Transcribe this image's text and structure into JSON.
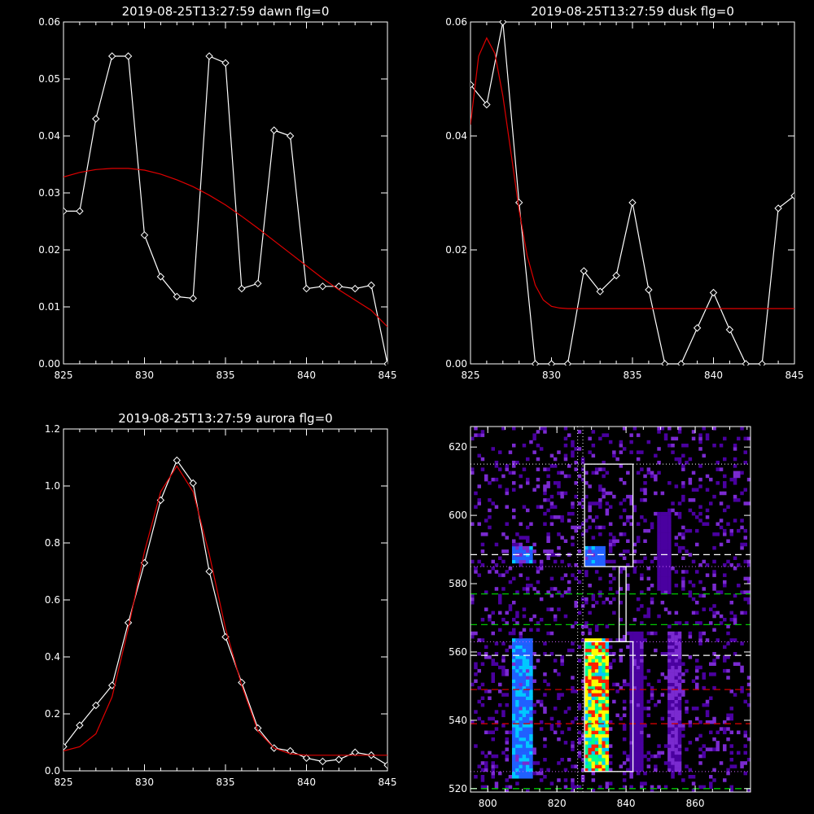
{
  "colors": {
    "background": "#000000",
    "foreground": "#ffffff",
    "fit": "#e00000",
    "green_line": "#00c800",
    "red_line": "#d00000",
    "magenta_dots": "#cc66ff"
  },
  "chart_data": [
    {
      "type": "line",
      "title": "2019-08-25T13:27:59 dawn flg=0",
      "xlim": [
        825,
        845
      ],
      "ylim": [
        0.0,
        0.06
      ],
      "xticks": [
        "825",
        "830",
        "835",
        "840",
        "845"
      ],
      "yticks": [
        "0.00",
        "0.01",
        "0.02",
        "0.03",
        "0.04",
        "0.05",
        "0.06"
      ],
      "series": [
        {
          "role": "data",
          "x": [
            825,
            826,
            827,
            828,
            829,
            830,
            831,
            832,
            833,
            834,
            835,
            836,
            837,
            838,
            839,
            840,
            841,
            842,
            843,
            844,
            845
          ],
          "y": [
            0.0268,
            0.0268,
            0.043,
            0.054,
            0.054,
            0.0226,
            0.0153,
            0.0118,
            0.0115,
            0.054,
            0.0528,
            0.0132,
            0.0141,
            0.041,
            0.04,
            0.0132,
            0.0136,
            0.0136,
            0.0132,
            0.0138,
            0.0
          ]
        },
        {
          "role": "fit",
          "x": [
            825,
            826,
            827,
            828,
            829,
            830,
            831,
            832,
            833,
            834,
            835,
            836,
            837,
            838,
            839,
            840,
            841,
            842,
            843,
            844,
            845
          ],
          "y": [
            0.0328,
            0.0336,
            0.0341,
            0.0343,
            0.0343,
            0.034,
            0.0333,
            0.0323,
            0.0311,
            0.0296,
            0.0279,
            0.0259,
            0.0238,
            0.0216,
            0.0194,
            0.0172,
            0.015,
            0.013,
            0.0112,
            0.0094,
            0.0065
          ]
        }
      ]
    },
    {
      "type": "line",
      "title": "2019-08-25T13:27:59 dusk flg=0",
      "xlim": [
        825,
        845
      ],
      "ylim": [
        0.0,
        0.06
      ],
      "xticks": [
        "825",
        "830",
        "835",
        "840",
        "845"
      ],
      "yticks": [
        "0.00",
        "0.02",
        "0.04",
        "0.06"
      ],
      "series": [
        {
          "role": "data",
          "x": [
            825,
            826,
            827,
            828,
            829,
            830,
            831,
            832,
            833,
            834,
            835,
            836,
            837,
            838,
            839,
            840,
            841,
            842,
            843,
            844,
            845
          ],
          "y": [
            0.049,
            0.0455,
            0.06,
            0.0283,
            0.0,
            0.0,
            0.0,
            0.0163,
            0.0127,
            0.0155,
            0.0283,
            0.013,
            0.0,
            0.0,
            0.0063,
            0.0125,
            0.006,
            0.0,
            0.0,
            0.0273,
            0.0295
          ]
        },
        {
          "role": "fit",
          "x": [
            825,
            825.5,
            826,
            826.5,
            827,
            827.5,
            828,
            828.5,
            829,
            829.5,
            830,
            830.5,
            831,
            832,
            834,
            836,
            838,
            840,
            842,
            845
          ],
          "y": [
            0.042,
            0.054,
            0.0572,
            0.0545,
            0.047,
            0.037,
            0.027,
            0.019,
            0.0138,
            0.0112,
            0.0101,
            0.0098,
            0.0097,
            0.0097,
            0.0097,
            0.0097,
            0.0097,
            0.0097,
            0.0097,
            0.0097
          ]
        }
      ]
    },
    {
      "type": "line",
      "title": "2019-08-25T13:27:59 aurora flg=0",
      "xlim": [
        825,
        845
      ],
      "ylim": [
        0.0,
        1.2
      ],
      "xticks": [
        "825",
        "830",
        "835",
        "840",
        "845"
      ],
      "yticks": [
        "0.0",
        "0.2",
        "0.4",
        "0.6",
        "0.8",
        "1.0",
        "1.2"
      ],
      "series": [
        {
          "role": "data",
          "x": [
            825,
            826,
            827,
            828,
            829,
            830,
            831,
            832,
            833,
            834,
            835,
            836,
            837,
            838,
            839,
            840,
            841,
            842,
            843,
            844,
            845
          ],
          "y": [
            0.085,
            0.16,
            0.23,
            0.3,
            0.52,
            0.73,
            0.95,
            1.09,
            1.01,
            0.7,
            0.47,
            0.31,
            0.15,
            0.08,
            0.07,
            0.045,
            0.033,
            0.04,
            0.065,
            0.055,
            0.02
          ]
        },
        {
          "role": "fit",
          "x": [
            825,
            826,
            827,
            828,
            829,
            830,
            831,
            832,
            833,
            834,
            835,
            836,
            837,
            838,
            839,
            840,
            841,
            842,
            843,
            844,
            845
          ],
          "y": [
            0.07,
            0.085,
            0.13,
            0.26,
            0.5,
            0.77,
            0.98,
            1.07,
            0.98,
            0.76,
            0.5,
            0.3,
            0.14,
            0.08,
            0.06,
            0.055,
            0.055,
            0.055,
            0.055,
            0.055,
            0.055
          ]
        }
      ]
    },
    {
      "type": "heatmap",
      "title": "",
      "xlim": [
        795,
        876
      ],
      "ylim": [
        519,
        626
      ],
      "xticks": [
        "800",
        "820",
        "840",
        "860"
      ],
      "yticks": [
        "520",
        "540",
        "560",
        "580",
        "600",
        "620"
      ],
      "colorscale": [
        "#4a00a0",
        "#7a2ad0",
        "#2060ff",
        "#00c8ff",
        "#00ff90",
        "#ffff00",
        "#ff2000"
      ],
      "bands": [
        {
          "x_center": 810,
          "x_halfwidth": 2.5,
          "y_from": 523,
          "y_to": 563,
          "peak": 0.5
        },
        {
          "x_center": 831.5,
          "x_halfwidth": 3,
          "y_from": 525,
          "y_to": 563,
          "peak": 0.95
        },
        {
          "x_center": 831,
          "x_halfwidth": 2.5,
          "y_from": 585,
          "y_to": 590,
          "peak": 0.45
        },
        {
          "x_center": 810,
          "x_halfwidth": 2.5,
          "y_from": 586,
          "y_to": 590,
          "peak": 0.45
        },
        {
          "x_center": 854,
          "x_halfwidth": 2,
          "y_from": 525,
          "y_to": 565,
          "peak": 0.2
        },
        {
          "x_center": 843,
          "x_halfwidth": 2,
          "y_from": 525,
          "y_to": 565,
          "peak": 0.15
        },
        {
          "x_center": 851,
          "x_halfwidth": 2,
          "y_from": 578,
          "y_to": 600,
          "peak": 0.12
        }
      ],
      "dashed_lines": [
        {
          "y": 588.5,
          "color": "#ffffff"
        },
        {
          "y": 559,
          "color": "#ffffff"
        },
        {
          "y": 577,
          "color": "#00c800"
        },
        {
          "y": 568,
          "color": "#00c800"
        },
        {
          "y": 520,
          "color": "#00c800"
        },
        {
          "y": 549,
          "color": "#d00000"
        },
        {
          "y": 539,
          "color": "#d00000"
        }
      ],
      "dotted_hlines": [
        {
          "y": 615,
          "color": "#ffffff"
        },
        {
          "y": 585,
          "color": "#cc66ff"
        },
        {
          "y": 563,
          "color": "#cc66ff"
        },
        {
          "y": 525,
          "color": "#cc66ff"
        }
      ],
      "dotted_vlines": [
        {
          "x": 826,
          "color": "#ffffff"
        },
        {
          "x": 827.5,
          "color": "#ffffff"
        }
      ],
      "boxes": [
        {
          "x0": 828,
          "x1": 842,
          "y0": 585,
          "y1": 615
        },
        {
          "x0": 838,
          "x1": 840,
          "y0": 563,
          "y1": 585
        },
        {
          "x0": 828,
          "x1": 842,
          "y0": 525,
          "y1": 563
        }
      ]
    }
  ]
}
